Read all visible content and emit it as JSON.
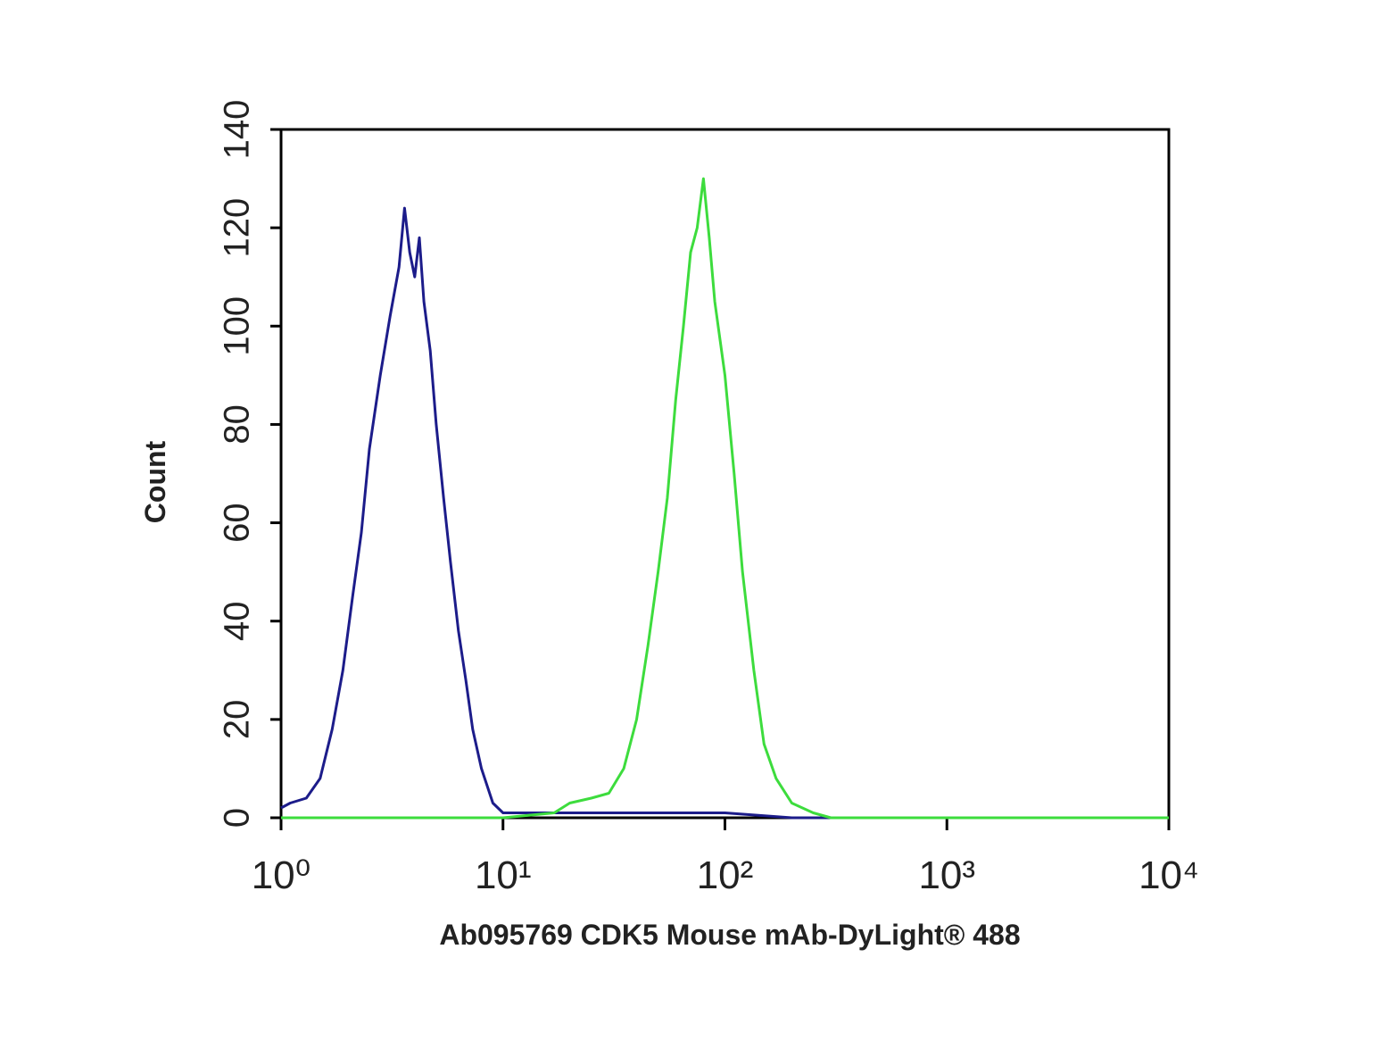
{
  "chart_data": {
    "type": "line",
    "x_label": "Ab095769 CDK5 Mouse mAb-DyLight® 488",
    "y_label": "Count",
    "xscale": "log",
    "xlim": [
      1,
      10000
    ],
    "xticks": [
      {
        "value": 1,
        "label": "10⁰"
      },
      {
        "value": 10,
        "label": "10¹"
      },
      {
        "value": 100,
        "label": "10²"
      },
      {
        "value": 1000,
        "label": "10³"
      },
      {
        "value": 10000,
        "label": "10⁴"
      }
    ],
    "ylim": [
      0,
      140
    ],
    "yticks": [
      0,
      20,
      40,
      60,
      80,
      100,
      120,
      140
    ],
    "series": [
      {
        "color": "#1c1c8a",
        "x": [
          1.0,
          1.1,
          1.3,
          1.5,
          1.7,
          1.9,
          2.1,
          2.3,
          2.5,
          2.8,
          3.1,
          3.4,
          3.6,
          3.8,
          4.0,
          4.2,
          4.4,
          4.7,
          5.0,
          5.4,
          5.8,
          6.3,
          6.8,
          7.3,
          8.0,
          9.0,
          10,
          12,
          20,
          50,
          100,
          200,
          10000
        ],
        "values": [
          2,
          3,
          4,
          8,
          18,
          30,
          45,
          58,
          75,
          90,
          102,
          112,
          124,
          115,
          110,
          118,
          105,
          95,
          80,
          65,
          52,
          38,
          28,
          18,
          10,
          3,
          1,
          1,
          1,
          1,
          1,
          0,
          0
        ]
      },
      {
        "color": "#3ddc3d",
        "x": [
          1,
          10,
          17,
          20,
          25,
          30,
          35,
          40,
          45,
          50,
          55,
          60,
          65,
          70,
          75,
          80,
          85,
          90,
          100,
          110,
          120,
          135,
          150,
          170,
          200,
          250,
          300,
          10000
        ],
        "values": [
          0,
          0,
          1,
          3,
          4,
          5,
          10,
          20,
          35,
          50,
          65,
          85,
          100,
          115,
          120,
          130,
          118,
          105,
          90,
          70,
          50,
          30,
          15,
          8,
          3,
          1,
          0,
          0
        ]
      }
    ]
  }
}
